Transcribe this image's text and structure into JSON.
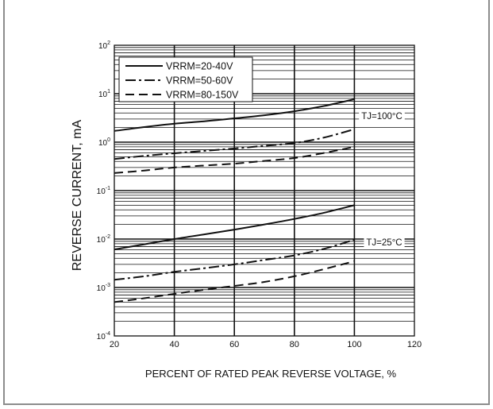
{
  "chart_data": {
    "type": "line",
    "xlabel": "PERCENT OF RATED PEAK REVERSE VOLTAGE, %",
    "ylabel": "REVERSE CURRENT, mA",
    "x_scale": "linear",
    "y_scale": "log",
    "xlim": [
      20,
      120
    ],
    "ylim": [
      0.0001,
      100
    ],
    "x_ticks": [
      20,
      40,
      60,
      80,
      100,
      120
    ],
    "y_ticks": [
      100,
      10,
      1,
      0.1,
      0.01,
      0.001,
      0.0001
    ],
    "y_tick_labels": [
      {
        "base": "10",
        "exp": "2"
      },
      {
        "base": "10",
        "exp": "1"
      },
      {
        "base": "10",
        "exp": "0"
      },
      {
        "base": "10",
        "exp": "-1"
      },
      {
        "base": "10",
        "exp": "-2"
      },
      {
        "base": "10",
        "exp": "-3"
      },
      {
        "base": "10",
        "exp": "-4"
      }
    ],
    "grid": true,
    "legend": {
      "position": "top-left",
      "entries": [
        {
          "label": "VRRM=20-40V",
          "style": "solid"
        },
        {
          "label": "VRRM=50-60V",
          "style": "dash-dot"
        },
        {
          "label": "VRRM=80-150V",
          "style": "dashed"
        }
      ]
    },
    "x": [
      20,
      30,
      40,
      50,
      60,
      70,
      80,
      90,
      100
    ],
    "groups": [
      {
        "label": "TJ=100°C",
        "series": [
          {
            "name": "VRRM=20-40V",
            "style": "solid",
            "values": [
              1.7,
              2.05,
              2.4,
              2.7,
              3.1,
              3.6,
              4.35,
              5.6,
              7.7
            ]
          },
          {
            "name": "VRRM=50-60V",
            "style": "dash-dot",
            "values": [
              0.45,
              0.52,
              0.59,
              0.66,
              0.74,
              0.84,
              0.96,
              1.25,
              1.85
            ]
          },
          {
            "name": "VRRM=80-150V",
            "style": "dashed",
            "values": [
              0.23,
              0.26,
              0.3,
              0.33,
              0.36,
              0.41,
              0.47,
              0.6,
              0.8
            ]
          }
        ]
      },
      {
        "label": "TJ=25°C",
        "series": [
          {
            "name": "VRRM=20-40V",
            "style": "solid",
            "values": [
              0.0061,
              0.0078,
              0.01,
              0.0125,
              0.0157,
              0.02,
              0.026,
              0.035,
              0.05
            ]
          },
          {
            "name": "VRRM=50-60V",
            "style": "dash-dot",
            "values": [
              0.00145,
              0.0017,
              0.0021,
              0.0025,
              0.003,
              0.0037,
              0.0046,
              0.0063,
              0.0097
            ]
          },
          {
            "name": "VRRM=80-150V",
            "style": "dashed",
            "values": [
              0.0005,
              0.0006,
              0.00074,
              0.0009,
              0.00108,
              0.0013,
              0.0017,
              0.0024,
              0.0035
            ]
          }
        ]
      }
    ]
  },
  "colors": {
    "line": "#111111",
    "frame": "#8c8c8c"
  }
}
